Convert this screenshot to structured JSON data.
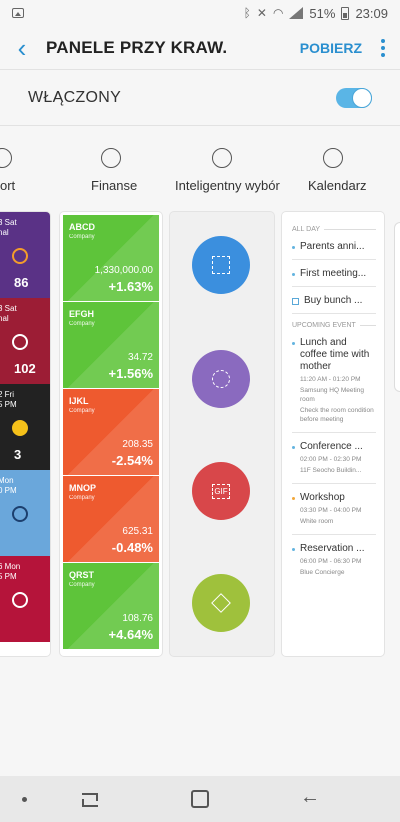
{
  "status_bar": {
    "battery": "51%",
    "time": "23:09"
  },
  "app_bar": {
    "title": "PANELE PRZY KRAW.",
    "download_label": "POBIERZ"
  },
  "toggle": {
    "label": "WŁĄCZONY",
    "on": true
  },
  "panels": [
    {
      "label": "ort"
    },
    {
      "label": "Finanse"
    },
    {
      "label": "Inteligentny wybór"
    },
    {
      "label": "Kalendarz"
    }
  ],
  "sport": {
    "games": [
      {
        "line1": "3 Sat",
        "line2": "nal",
        "score": "86",
        "color": "#5a3286"
      },
      {
        "line1": "3 Sat",
        "line2": "nal",
        "score": "102",
        "color": "#9c1d35"
      },
      {
        "line1": "2 Fri",
        "line2": "5 PM",
        "score": "3",
        "color": "#222222"
      },
      {
        "line1": "Mon",
        "line2": "0 PM",
        "score": "",
        "color": "#6aa7db"
      },
      {
        "line1": "6 Mon",
        "line2": "5 PM",
        "score": "",
        "color": "#b5143a"
      }
    ]
  },
  "finance": {
    "stocks": [
      {
        "name": "ABCD",
        "sub": "Company",
        "price": "1,330,000.00",
        "change": "+1.63%",
        "color": "#5ec43a"
      },
      {
        "name": "EFGH",
        "sub": "Company",
        "price": "34.72",
        "change": "+1.56%",
        "color": "#5ec43a"
      },
      {
        "name": "IJKL",
        "sub": "Company",
        "price": "208.35",
        "change": "-2.54%",
        "color": "#ee5a2f"
      },
      {
        "name": "MNOP",
        "sub": "Company",
        "price": "625.31",
        "change": "-0.48%",
        "color": "#ee5a2f"
      },
      {
        "name": "QRST",
        "sub": "Company",
        "price": "108.76",
        "change": "+4.64%",
        "color": "#5ec43a"
      }
    ]
  },
  "smart_select": {
    "buttons": [
      {
        "icon": "rectangle-select-icon",
        "color": "#3b8fde"
      },
      {
        "icon": "oval-select-icon",
        "color": "#8a6abf"
      },
      {
        "icon": "animation-gif-icon",
        "gif_label": "GIF",
        "color": "#d8474a"
      },
      {
        "icon": "pin-to-screen-icon",
        "color": "#9fc13c"
      }
    ]
  },
  "calendar": {
    "all_day_header": "ALL DAY",
    "all_day": [
      {
        "text": "Parents anni..."
      },
      {
        "text": "First meeting..."
      },
      {
        "text": "Buy bunch ..."
      }
    ],
    "upcoming_header": "UPCOMING EVENT",
    "events": [
      {
        "title": "Lunch and coffee time with mother",
        "time": "11:20 AM - 01:20 PM",
        "place": "Samsung HQ Meeting room",
        "note": "Check the room condition before meeting"
      },
      {
        "title": "Conference ...",
        "time": "02:00 PM - 02:30 PM",
        "place": "11F Seocho Buildin..."
      },
      {
        "title": "Workshop",
        "time": "03:30 PM - 04:00 PM",
        "place": "White room"
      },
      {
        "title": "Reservation ...",
        "time": "06:00 PM - 06:30 PM",
        "place": "Blue Concierge"
      }
    ]
  }
}
